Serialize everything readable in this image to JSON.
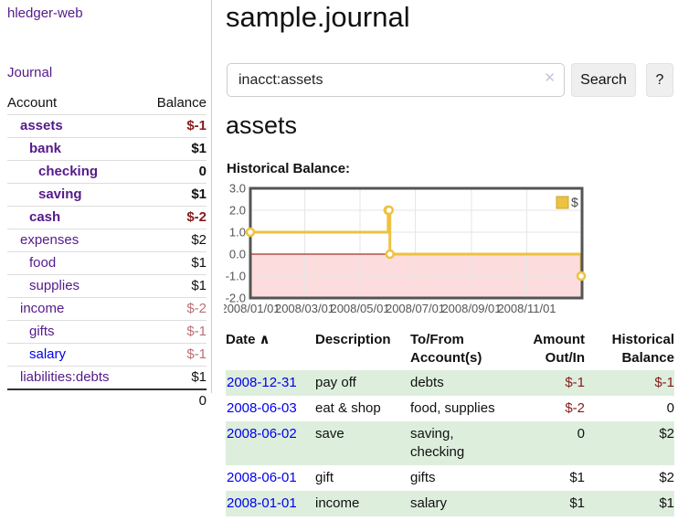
{
  "app": {
    "brand": "hledger-web",
    "nav_journal": "Journal"
  },
  "sidebar": {
    "header": {
      "account": "Account",
      "balance": "Balance"
    },
    "accounts": [
      {
        "name": "assets",
        "balance": "$-1"
      },
      {
        "name": "bank",
        "balance": "$1"
      },
      {
        "name": "checking",
        "balance": "0"
      },
      {
        "name": "saving",
        "balance": "$1"
      },
      {
        "name": "cash",
        "balance": "$-2"
      },
      {
        "name": "expenses",
        "balance": "$2"
      },
      {
        "name": "food",
        "balance": "$1"
      },
      {
        "name": "supplies",
        "balance": "$1"
      },
      {
        "name": "income",
        "balance": "$-2"
      },
      {
        "name": "gifts",
        "balance": "$-1"
      },
      {
        "name": "salary",
        "balance": "$-1"
      },
      {
        "name": "liabilities:debts",
        "balance": "$1"
      }
    ],
    "total": "0"
  },
  "header": {
    "title": "sample.journal"
  },
  "search": {
    "value": "inacct:assets",
    "clear_icon": "✕",
    "button_label": "Search",
    "help_label": "?"
  },
  "content": {
    "heading": "assets",
    "chart_caption": "Historical Balance:"
  },
  "chart_data": {
    "type": "line",
    "step": true,
    "title": "Historical Balance:",
    "series": [
      {
        "name": "$",
        "color": "#edc240",
        "points": [
          [
            "2008-01-01",
            1
          ],
          [
            "2008-06-01",
            2
          ],
          [
            "2008-06-02",
            2
          ],
          [
            "2008-06-03",
            0
          ],
          [
            "2008-12-31",
            -1
          ]
        ]
      }
    ],
    "x_range": [
      "2008-01-01",
      "2009-01-01"
    ],
    "y_range": [
      -2,
      3
    ],
    "x_ticks": [
      {
        "pos": "2008-01-01",
        "label": "2008/01/01"
      },
      {
        "pos": "2008-03-01",
        "label": "2008/03/01"
      },
      {
        "pos": "2008-05-01",
        "label": "2008/05/01"
      },
      {
        "pos": "2008-07-01",
        "label": "2008/07/01"
      },
      {
        "pos": "2008-09-01",
        "label": "2008/09/01"
      },
      {
        "pos": "2008-11-01",
        "label": "2008/11/01"
      }
    ],
    "y_ticks": [
      {
        "pos": 3,
        "label": "3.0"
      },
      {
        "pos": 2,
        "label": "2.0"
      },
      {
        "pos": 1,
        "label": "1.0"
      },
      {
        "pos": 0,
        "label": "0.0"
      },
      {
        "pos": -1,
        "label": "-1.0"
      },
      {
        "pos": -2,
        "label": "-2.0"
      }
    ],
    "grid": true,
    "grid_color": "#e6e6e6",
    "border_color": "#545454",
    "tick_label_color": "#545454",
    "negative_region": {
      "below": 0,
      "fill": "#fcdcdc",
      "line_color": "#8b0000"
    },
    "legend": {
      "position": "top-right",
      "label": "$"
    }
  },
  "register": {
    "headers": {
      "date": {
        "line1": "Date",
        "sort_icon": "∧"
      },
      "desc": {
        "line1": "Description"
      },
      "acct": {
        "line1": "To/From",
        "line2": "Account(s)"
      },
      "amount": {
        "line1": "Amount",
        "line2": "Out/In"
      },
      "balance": {
        "line1": "Historical",
        "line2": "Balance"
      }
    },
    "rows": [
      {
        "date": "2008-12-31",
        "description": "pay off",
        "accounts": "debts",
        "amount": "$-1",
        "balance": "$-1"
      },
      {
        "date": "2008-06-03",
        "description": "eat & shop",
        "accounts": "food, supplies",
        "amount": "$-2",
        "balance": "0"
      },
      {
        "date": "2008-06-02",
        "description": "save",
        "accounts": "saving, checking",
        "amount": "0",
        "balance": "$2"
      },
      {
        "date": "2008-06-01",
        "description": "gift",
        "accounts": "gifts",
        "amount": "$1",
        "balance": "$2"
      },
      {
        "date": "2008-01-01",
        "description": "income",
        "accounts": "salary",
        "amount": "$1",
        "balance": "$1"
      }
    ]
  }
}
